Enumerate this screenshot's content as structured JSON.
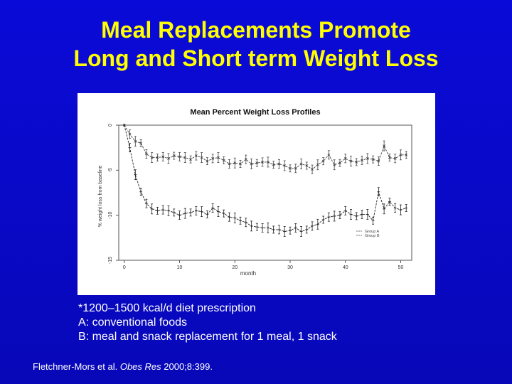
{
  "slide": {
    "title_line1": "Meal Replacements Promote",
    "title_line2": "Long and Short term Weight Loss",
    "notes": [
      "*1200–1500 kcal/d diet prescription",
      "A: conventional foods",
      "B: meal and snack replacement for 1 meal, 1 snack"
    ],
    "citation": {
      "authors": "Fletchner-Mors et al. ",
      "journal": "Obes Res",
      "ref": " 2000;8:399."
    },
    "colors": {
      "background": "#0a0ad8",
      "title": "#ffff00",
      "text": "#ffffff"
    }
  },
  "chart_data": {
    "type": "line",
    "title": "Mean Percent Weight Loss Profiles",
    "xlabel": "month",
    "ylabel": "% weight loss from baseline",
    "xlim": [
      -1,
      52
    ],
    "ylim": [
      -15,
      0
    ],
    "xticks": [
      0,
      10,
      20,
      30,
      40,
      50
    ],
    "yticks": [
      0,
      -5,
      -10,
      -15
    ],
    "legend": {
      "position": "bottom-right",
      "entries": [
        "Group A",
        "Group B"
      ]
    },
    "x": [
      0,
      1,
      2,
      3,
      4,
      5,
      6,
      7,
      8,
      9,
      10,
      11,
      12,
      13,
      14,
      15,
      16,
      17,
      18,
      19,
      20,
      21,
      22,
      23,
      24,
      25,
      26,
      27,
      28,
      29,
      30,
      31,
      32,
      33,
      34,
      35,
      36,
      37,
      38,
      39,
      40,
      41,
      42,
      43,
      44,
      45,
      46,
      47,
      48,
      49,
      50,
      51
    ],
    "series": [
      {
        "name": "Group A",
        "values": [
          0,
          -1.0,
          -1.8,
          -2.0,
          -3.2,
          -3.6,
          -3.6,
          -3.5,
          -3.7,
          -3.4,
          -3.5,
          -3.6,
          -3.8,
          -3.4,
          -3.6,
          -4.0,
          -3.7,
          -3.6,
          -3.9,
          -4.3,
          -4.2,
          -4.3,
          -3.8,
          -4.3,
          -4.2,
          -4.1,
          -4.1,
          -4.4,
          -4.3,
          -4.5,
          -4.8,
          -4.8,
          -4.3,
          -4.5,
          -4.9,
          -4.4,
          -4.0,
          -3.3,
          -4.4,
          -4.2,
          -3.7,
          -4.0,
          -4.1,
          -3.9,
          -3.7,
          -3.8,
          -4.0,
          -2.3,
          -3.6,
          -3.7,
          -3.3,
          -3.3
        ]
      },
      {
        "name": "Group B",
        "values": [
          0,
          -2.5,
          -5.5,
          -7.4,
          -8.7,
          -9.3,
          -9.5,
          -9.4,
          -9.5,
          -9.7,
          -10.0,
          -9.8,
          -9.7,
          -9.5,
          -9.6,
          -9.9,
          -9.2,
          -9.6,
          -9.8,
          -10.2,
          -10.3,
          -10.6,
          -10.8,
          -11.2,
          -11.3,
          -11.4,
          -11.4,
          -11.6,
          -11.6,
          -11.8,
          -11.7,
          -11.4,
          -11.8,
          -11.6,
          -11.2,
          -11.0,
          -10.5,
          -10.2,
          -10.1,
          -10.0,
          -9.5,
          -9.9,
          -10.1,
          -9.9,
          -9.9,
          -10.6,
          -7.4,
          -9.3,
          -8.5,
          -9.2,
          -9.4,
          -9.2
        ]
      }
    ]
  }
}
